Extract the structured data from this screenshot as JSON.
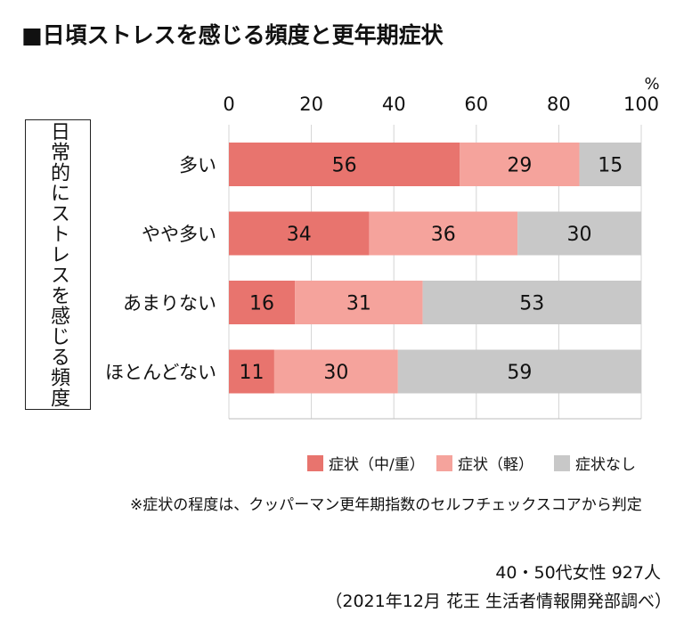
{
  "title": "■日頃ストレスを感じる頻度と更年期症状",
  "ylabel": "日常的にストレスを感じる頻度",
  "note": "※症状の程度は、クッパーマン更年期指数のセルフチェックスコアから判定",
  "footer": {
    "line1": "40・50代女性 927人",
    "line2": "（2021年12月 花王 生活者情報開発部調べ）"
  },
  "chart_data": {
    "type": "bar",
    "orientation": "horizontal",
    "stacked": true,
    "unit": "%",
    "xlim": [
      0,
      100
    ],
    "xticks": [
      0,
      20,
      40,
      60,
      80,
      100
    ],
    "categories": [
      "多い",
      "やや多い",
      "あまりない",
      "ほとんどない"
    ],
    "series": [
      {
        "name": "症状（中/重）",
        "color": "#e8746e",
        "values": [
          56,
          34,
          16,
          11
        ]
      },
      {
        "name": "症状（軽）",
        "color": "#f5a39c",
        "values": [
          29,
          36,
          31,
          30
        ]
      },
      {
        "name": "症状なし",
        "color": "#c8c8c8",
        "values": [
          15,
          30,
          53,
          59
        ]
      }
    ],
    "legend_position": "bottom-right",
    "grid": true
  }
}
